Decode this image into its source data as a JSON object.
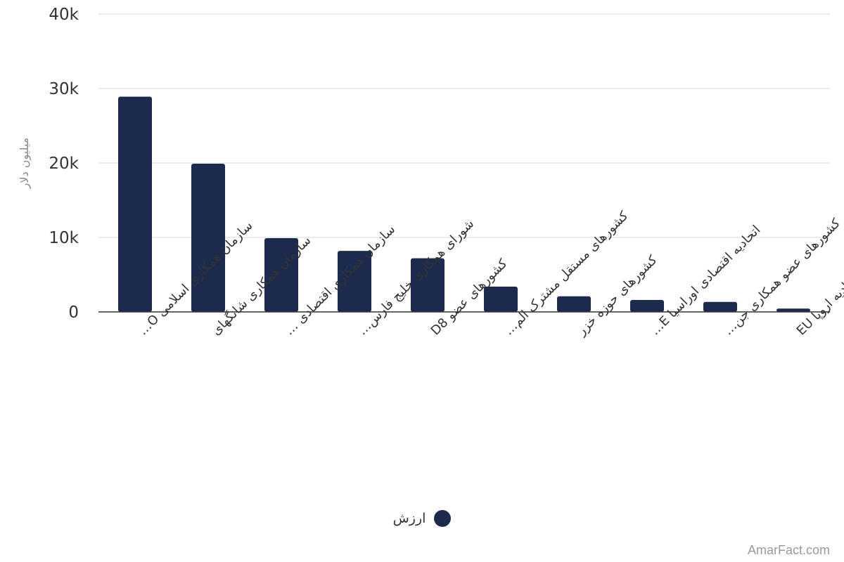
{
  "colors": {
    "bar": "#1c2a4d",
    "grid": "#e6e6e6",
    "axis": "#333333",
    "tick_text": "#333333",
    "ylabel_text": "#8a8a8a"
  },
  "watermark": "AmarFact.com",
  "legend": {
    "label": "ارزش",
    "placement": "bottom-center"
  },
  "chart_data": {
    "type": "bar",
    "categories": [
      "سازمان همکاری اسلامی O…",
      "سازمان همکاری شانگهای",
      "سازمان همکاری اقتصادی …",
      "شورای همکاری خلیج فارس…",
      "کشورهای عضو D8",
      "کشورهای مستقل مشترک الم…",
      "کشورهای حوزه خزر",
      "اتحادیه اقتصادی اوراسیا E…",
      "کشورهای عضو همکاری جن…",
      "اتحادیه اروپا EU"
    ],
    "series": [
      {
        "name": "ارزش",
        "values": [
          28900,
          19900,
          9900,
          8200,
          7200,
          3400,
          2100,
          1600,
          1350,
          450
        ]
      }
    ],
    "ylabel": "میلیون دلار",
    "xlabel": "",
    "ylim": [
      0,
      40000
    ],
    "yticks": [
      0,
      10000,
      20000,
      30000,
      40000
    ],
    "ytick_labels": [
      "0",
      "10k",
      "20k",
      "30k",
      "40k"
    ],
    "grid": true
  }
}
